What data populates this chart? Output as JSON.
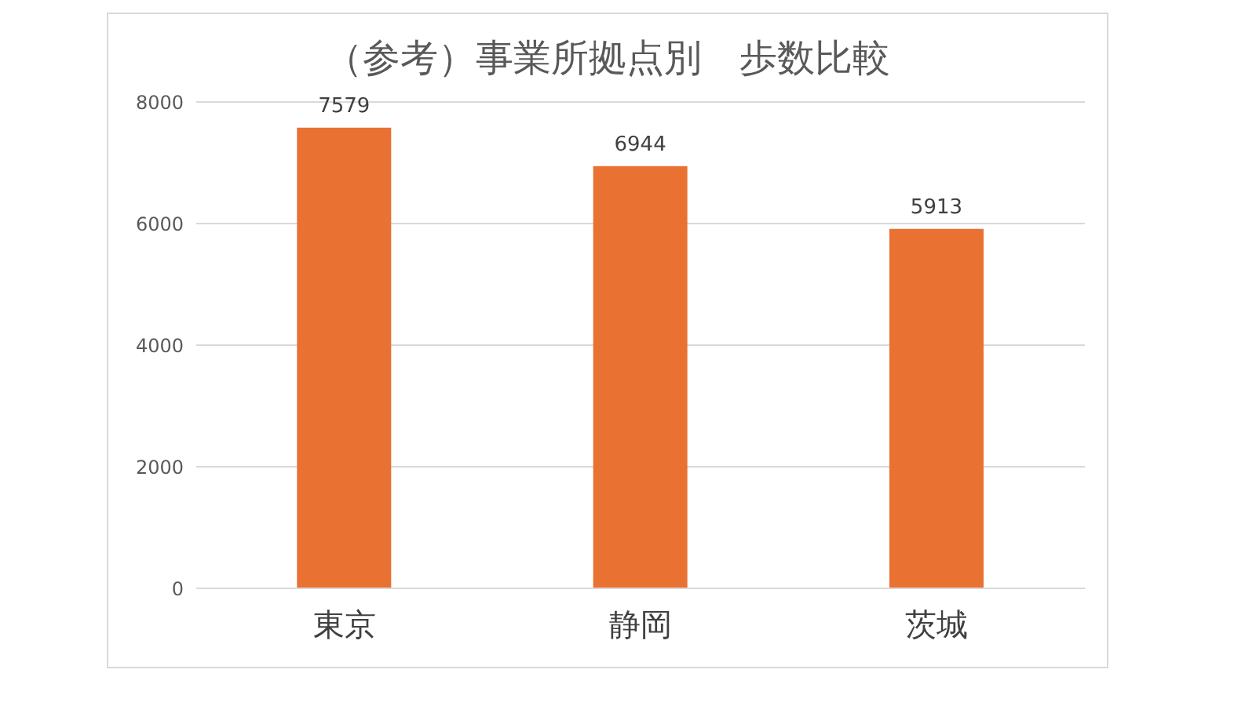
{
  "chart_data": {
    "type": "bar",
    "title": "（参考）事業所拠点別　歩数比較",
    "categories": [
      "東京",
      "静岡",
      "茨城"
    ],
    "values": [
      7579,
      6944,
      5913
    ],
    "color": "#e97132",
    "ylim": [
      0,
      8000
    ],
    "yticks": [
      0,
      2000,
      4000,
      6000,
      8000
    ],
    "grid": "y",
    "data_labels": true
  }
}
